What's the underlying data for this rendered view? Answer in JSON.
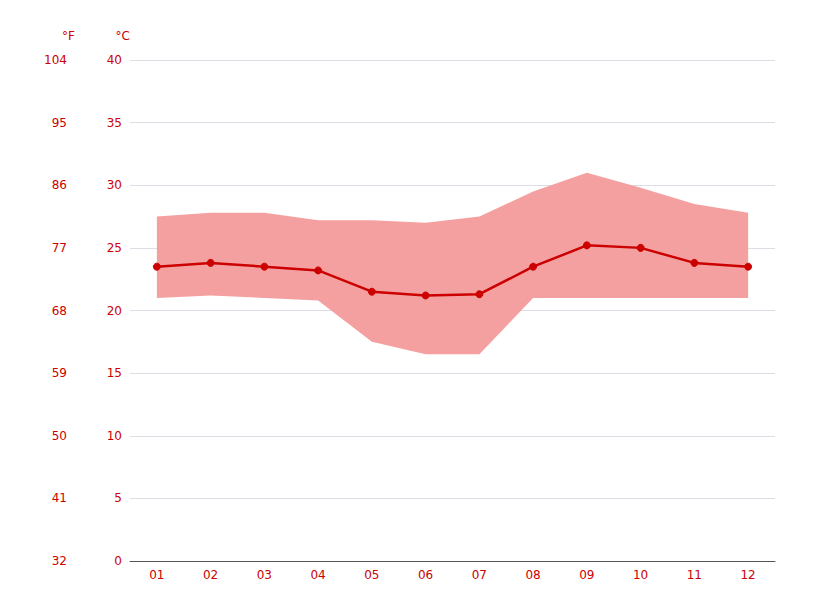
{
  "chart_data": {
    "type": "line",
    "categories": [
      "01",
      "02",
      "03",
      "04",
      "05",
      "06",
      "07",
      "08",
      "09",
      "10",
      "11",
      "12"
    ],
    "series": [
      {
        "type": "band",
        "color": "#f5a0a0",
        "min": [
          21.0,
          21.2,
          21.0,
          20.8,
          17.5,
          16.5,
          16.5,
          21.0,
          21.0,
          21.0,
          21.0,
          21.0
        ],
        "max": [
          27.5,
          27.8,
          27.8,
          27.2,
          27.2,
          27.0,
          27.5,
          29.5,
          31.0,
          29.8,
          28.5,
          27.8
        ]
      },
      {
        "type": "line",
        "color": "#cc0000",
        "marker": "circle",
        "values": [
          23.5,
          23.8,
          23.5,
          23.2,
          21.5,
          21.2,
          21.3,
          23.5,
          25.2,
          25.0,
          23.8,
          23.5
        ]
      }
    ],
    "ylabel": "°C",
    "ylim": [
      0,
      40
    ],
    "yticks": [
      0,
      5,
      10,
      15,
      20,
      25,
      30,
      35,
      40
    ],
    "y2label": "°F",
    "y2lim": [
      32,
      104
    ],
    "y2ticks": [
      32,
      41,
      50,
      59,
      68,
      77,
      86,
      95,
      104
    ],
    "grid": true
  }
}
